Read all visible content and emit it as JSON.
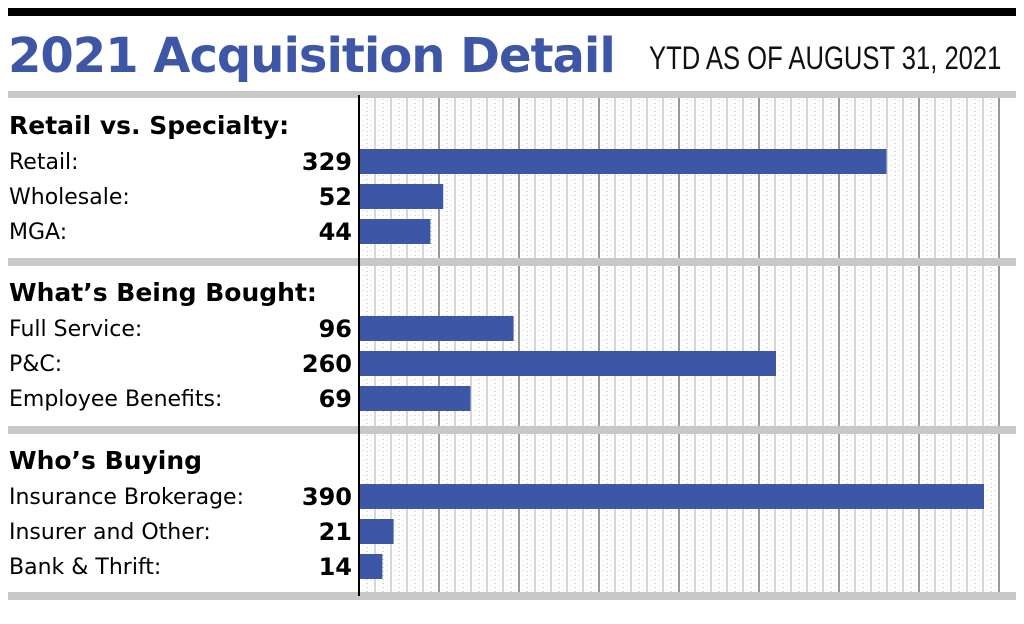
{
  "header": {
    "title": "2021 Acquisition Detail",
    "subtitle": "YTD AS OF AUGUST 31, 2021"
  },
  "colors": {
    "bar": "#3d56a6",
    "title": "#3d56a6",
    "divider": "#c8c8c8"
  },
  "chart_data": {
    "type": "bar",
    "orientation": "horizontal",
    "title": "2021 Acquisition Detail",
    "subtitle": "YTD AS OF AUGUST 31, 2021",
    "xlim": [
      0,
      400
    ],
    "grid": true,
    "groups": [
      {
        "title": "Retail vs. Specialty:",
        "rows": [
          {
            "label": "Retail:",
            "value": 329
          },
          {
            "label": "Wholesale:",
            "value": 52
          },
          {
            "label": "MGA:",
            "value": 44
          }
        ]
      },
      {
        "title": "What’s Being Bought:",
        "rows": [
          {
            "label": "Full Service:",
            "value": 96
          },
          {
            "label": "P&C:",
            "value": 260
          },
          {
            "label": "Employee Benefits:",
            "value": 69
          }
        ]
      },
      {
        "title": "Who’s Buying",
        "rows": [
          {
            "label": "Insurance Brokerage:",
            "value": 390
          },
          {
            "label": "Insurer and Other:",
            "value": 21
          },
          {
            "label": "Bank & Thrift:",
            "value": 14
          }
        ]
      }
    ]
  }
}
